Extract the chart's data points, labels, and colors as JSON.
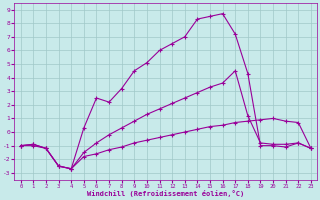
{
  "xlabel": "Windchill (Refroidissement éolien,°C)",
  "xlim": [
    -0.5,
    23.5
  ],
  "ylim": [
    -3.5,
    9.5
  ],
  "xticks": [
    0,
    1,
    2,
    3,
    4,
    5,
    6,
    7,
    8,
    9,
    10,
    11,
    12,
    13,
    14,
    15,
    16,
    17,
    18,
    19,
    20,
    21,
    22,
    23
  ],
  "yticks": [
    -3,
    -2,
    -1,
    0,
    1,
    2,
    3,
    4,
    5,
    6,
    7,
    8,
    9
  ],
  "bg_color": "#c8eaea",
  "line_color": "#990099",
  "grid_color": "#a0c8c8",
  "line1_x": [
    0,
    1,
    2,
    3,
    4,
    5,
    6,
    7,
    8,
    9,
    10,
    11,
    12,
    13,
    14,
    15,
    16,
    17,
    18,
    19,
    20,
    21,
    22,
    23
  ],
  "line1_y": [
    -1.0,
    -1.0,
    -1.2,
    -2.5,
    -2.7,
    0.3,
    2.5,
    2.2,
    3.2,
    4.5,
    5.1,
    6.0,
    6.5,
    7.0,
    8.3,
    8.5,
    8.7,
    7.2,
    4.3,
    -1.0,
    -1.0,
    -1.1,
    -0.8,
    -1.2
  ],
  "line2_x": [
    0,
    1,
    2,
    3,
    4,
    5,
    6,
    7,
    8,
    9,
    10,
    11,
    12,
    13,
    14,
    15,
    16,
    17,
    18,
    19,
    20,
    21,
    22,
    23
  ],
  "line2_y": [
    -1.0,
    -0.9,
    -1.2,
    -2.5,
    -2.7,
    -1.5,
    -0.8,
    -0.2,
    0.3,
    0.8,
    1.3,
    1.7,
    2.1,
    2.5,
    2.9,
    3.3,
    3.6,
    4.5,
    1.2,
    -0.8,
    -0.9,
    -0.9,
    -0.8,
    -1.2
  ],
  "line3_x": [
    0,
    1,
    2,
    3,
    4,
    5,
    6,
    7,
    8,
    9,
    10,
    11,
    12,
    13,
    14,
    15,
    16,
    17,
    18,
    19,
    20,
    21,
    22,
    23
  ],
  "line3_y": [
    -1.0,
    -0.9,
    -1.2,
    -2.5,
    -2.7,
    -1.8,
    -1.6,
    -1.3,
    -1.1,
    -0.8,
    -0.6,
    -0.4,
    -0.2,
    0.0,
    0.2,
    0.4,
    0.5,
    0.7,
    0.8,
    0.9,
    1.0,
    0.8,
    0.7,
    -1.2
  ]
}
